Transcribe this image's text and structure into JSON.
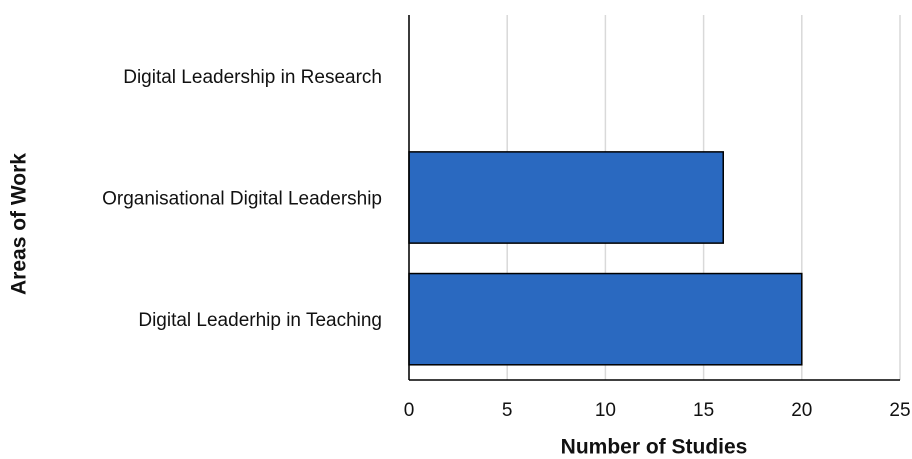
{
  "chart_data": {
    "type": "barh",
    "categories": [
      "Digital Leadership in Research",
      "Organisational Digital Leadership",
      "Digital Leaderhip in Teaching"
    ],
    "values": [
      0,
      16,
      20
    ],
    "color": "#2a69c0",
    "xlabel": "Number of Studies",
    "ylabel": "Areas of Work",
    "xlim": [
      0,
      25
    ],
    "xticks": [
      0,
      5,
      10,
      15,
      20,
      25
    ],
    "grid": true
  }
}
